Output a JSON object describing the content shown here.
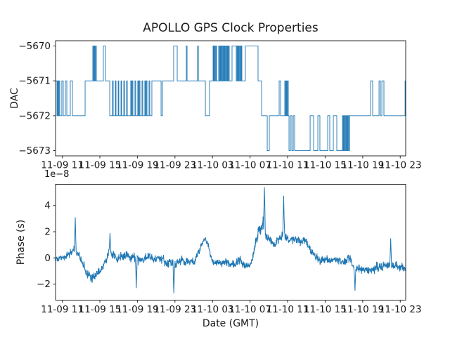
{
  "figure": {
    "title": "APOLLO GPS Clock Properties",
    "background": "#ffffff"
  },
  "colors": {
    "line": "#1f77b4",
    "text": "#1a1a1a",
    "spine": "#2b2b2b"
  },
  "chart_data": [
    {
      "type": "line",
      "subtype": "step",
      "title": "APOLLO GPS Clock Properties",
      "ylabel": "DAC",
      "xlabel": "",
      "grid": false,
      "legend": null,
      "x_axis_note": "hours after 11-09 ~10:20 GMT",
      "xlim_hours": [
        0,
        37.3
      ],
      "ylim": [
        -5673.15,
        -5669.85
      ],
      "yticks": [
        -5673,
        -5672,
        -5671,
        -5670
      ],
      "xtick_hours": [
        0.72,
        4.72,
        8.72,
        12.72,
        16.72,
        20.72,
        24.72,
        28.72,
        32.72,
        36.72
      ],
      "xtick_labels": [
        "11-09 11",
        "11-09 15",
        "11-09 19",
        "11-09 23",
        "11-10 03",
        "11-10 07",
        "11-10 11",
        "11-10 15",
        "11-10 19",
        "11-10 23"
      ],
      "steps": [
        [
          0,
          -5671
        ],
        [
          0.15,
          -5672
        ],
        [
          0.22,
          -5671
        ],
        [
          0.3,
          -5672
        ],
        [
          0.37,
          -5671
        ],
        [
          0.45,
          -5672
        ],
        [
          0.67,
          -5671
        ],
        [
          0.82,
          -5672
        ],
        [
          1.05,
          -5671
        ],
        [
          1.2,
          -5672
        ],
        [
          1.57,
          -5671
        ],
        [
          1.8,
          -5672
        ],
        [
          3.15,
          -5671
        ],
        [
          3.97,
          -5670
        ],
        [
          4.04,
          -5671
        ],
        [
          4.12,
          -5670
        ],
        [
          4.19,
          -5671
        ],
        [
          4.27,
          -5670
        ],
        [
          4.34,
          -5671
        ],
        [
          5.09,
          -5670
        ],
        [
          5.32,
          -5671
        ],
        [
          5.77,
          -5672
        ],
        [
          6.07,
          -5671
        ],
        [
          6.14,
          -5672
        ],
        [
          6.37,
          -5671
        ],
        [
          6.44,
          -5672
        ],
        [
          6.67,
          -5671
        ],
        [
          6.74,
          -5672
        ],
        [
          6.97,
          -5671
        ],
        [
          7.04,
          -5672
        ],
        [
          7.27,
          -5671
        ],
        [
          7.34,
          -5672
        ],
        [
          7.57,
          -5671
        ],
        [
          7.64,
          -5672
        ],
        [
          8.01,
          -5671
        ],
        [
          8.09,
          -5672
        ],
        [
          8.16,
          -5671
        ],
        [
          8.24,
          -5672
        ],
        [
          8.46,
          -5671
        ],
        [
          8.54,
          -5672
        ],
        [
          8.76,
          -5671
        ],
        [
          8.84,
          -5672
        ],
        [
          8.91,
          -5671
        ],
        [
          8.99,
          -5672
        ],
        [
          9.21,
          -5671
        ],
        [
          9.29,
          -5672
        ],
        [
          9.51,
          -5671
        ],
        [
          9.59,
          -5672
        ],
        [
          9.66,
          -5671
        ],
        [
          9.74,
          -5672
        ],
        [
          9.96,
          -5671
        ],
        [
          10.04,
          -5672
        ],
        [
          10.26,
          -5671
        ],
        [
          11.24,
          -5672
        ],
        [
          11.39,
          -5671
        ],
        [
          12.58,
          -5670
        ],
        [
          12.96,
          -5671
        ],
        [
          13.93,
          -5670
        ],
        [
          14.01,
          -5671
        ],
        [
          15.13,
          -5670
        ],
        [
          15.21,
          -5671
        ],
        [
          15.96,
          -5672
        ],
        [
          16.4,
          -5671
        ],
        [
          16.78,
          -5670
        ],
        [
          16.85,
          -5671
        ],
        [
          16.93,
          -5670
        ],
        [
          17,
          -5671
        ],
        [
          17.08,
          -5670
        ],
        [
          17.15,
          -5671
        ],
        [
          17.38,
          -5670
        ],
        [
          17.45,
          -5671
        ],
        [
          17.53,
          -5670
        ],
        [
          17.6,
          -5671
        ],
        [
          17.68,
          -5670
        ],
        [
          17.75,
          -5671
        ],
        [
          17.83,
          -5670
        ],
        [
          17.9,
          -5671
        ],
        [
          17.98,
          -5670
        ],
        [
          18.05,
          -5671
        ],
        [
          18.13,
          -5670
        ],
        [
          18.2,
          -5671
        ],
        [
          18.28,
          -5670
        ],
        [
          18.35,
          -5671
        ],
        [
          18.43,
          -5670
        ],
        [
          18.5,
          -5671
        ],
        [
          18.8,
          -5670
        ],
        [
          19.25,
          -5671
        ],
        [
          19.33,
          -5670
        ],
        [
          19.4,
          -5671
        ],
        [
          19.48,
          -5670
        ],
        [
          19.55,
          -5671
        ],
        [
          19.63,
          -5670
        ],
        [
          19.7,
          -5671
        ],
        [
          19.78,
          -5670
        ],
        [
          19.85,
          -5671
        ],
        [
          20.22,
          -5670
        ],
        [
          21.57,
          -5671
        ],
        [
          21.95,
          -5672
        ],
        [
          22.55,
          -5673
        ],
        [
          22.77,
          -5672
        ],
        [
          23.82,
          -5671
        ],
        [
          23.97,
          -5672
        ],
        [
          24.42,
          -5671
        ],
        [
          24.49,
          -5672
        ],
        [
          24.57,
          -5671
        ],
        [
          24.64,
          -5672
        ],
        [
          24.72,
          -5671
        ],
        [
          24.79,
          -5672
        ],
        [
          24.87,
          -5673
        ],
        [
          25.02,
          -5672
        ],
        [
          25.17,
          -5673
        ],
        [
          25.32,
          -5672
        ],
        [
          25.47,
          -5673
        ],
        [
          27.12,
          -5672
        ],
        [
          27.49,
          -5673
        ],
        [
          27.94,
          -5672
        ],
        [
          28.16,
          -5673
        ],
        [
          28.99,
          -5672
        ],
        [
          29.21,
          -5673
        ],
        [
          29.59,
          -5672
        ],
        [
          29.96,
          -5673
        ],
        [
          30.56,
          -5672
        ],
        [
          30.64,
          -5673
        ],
        [
          30.71,
          -5672
        ],
        [
          30.79,
          -5673
        ],
        [
          30.86,
          -5672
        ],
        [
          30.94,
          -5673
        ],
        [
          31.01,
          -5672
        ],
        [
          31.09,
          -5673
        ],
        [
          31.16,
          -5672
        ],
        [
          31.24,
          -5673
        ],
        [
          31.31,
          -5672
        ],
        [
          33.56,
          -5671
        ],
        [
          33.78,
          -5672
        ],
        [
          34.46,
          -5671
        ],
        [
          34.61,
          -5672
        ],
        [
          34.76,
          -5671
        ],
        [
          34.98,
          -5672
        ],
        [
          37.23,
          -5671
        ]
      ]
    },
    {
      "type": "line",
      "subtype": "noisy-series",
      "title": "",
      "ylabel": "Phase (s)",
      "xlabel": "Date (GMT)",
      "offset_text": "1e−8",
      "units": "1e-8 s",
      "grid": false,
      "legend": null,
      "xlim_hours": [
        0,
        37.3
      ],
      "ylim": [
        -3.22,
        5.62
      ],
      "yticks": [
        -2,
        0,
        2,
        4
      ],
      "xtick_hours": [
        0.72,
        4.72,
        8.72,
        12.72,
        16.72,
        20.72,
        24.72,
        28.72,
        32.72,
        36.72
      ],
      "xtick_labels": [
        "11-09 11",
        "11-09 15",
        "11-09 19",
        "11-09 23",
        "11-10 03",
        "11-10 07",
        "11-10 11",
        "11-10 15",
        "11-10 19",
        "11-10 23"
      ],
      "anchors": [
        [
          0,
          -0.1,
          0.5
        ],
        [
          0.8,
          0.1,
          0.6
        ],
        [
          1.6,
          0.4,
          0.7
        ],
        [
          1.9,
          0.7,
          0.7
        ],
        [
          2.3,
          0.5,
          0.5
        ],
        [
          2.7,
          0,
          0.6
        ],
        [
          3.1,
          -0.9,
          0.7
        ],
        [
          3.4,
          -1.4,
          0.8
        ],
        [
          4,
          -1.6,
          0.7
        ],
        [
          4.6,
          -1.1,
          0.7
        ],
        [
          5.2,
          -0.4,
          0.6
        ],
        [
          5.7,
          0.3,
          0.7
        ],
        [
          6.1,
          0.1,
          0.7
        ],
        [
          6.8,
          0,
          0.7
        ],
        [
          7.6,
          0.1,
          0.7
        ],
        [
          8.3,
          -0.1,
          0.7
        ],
        [
          9.1,
          -0.2,
          0.6
        ],
        [
          9.8,
          0,
          0.7
        ],
        [
          10.6,
          -0.1,
          0.6
        ],
        [
          11.3,
          -0.3,
          0.7
        ],
        [
          12.1,
          -0.4,
          0.7
        ],
        [
          12.6,
          -0.5,
          0.8
        ],
        [
          13.2,
          -0.3,
          0.6
        ],
        [
          13.7,
          -0.2,
          0.6
        ],
        [
          14.3,
          -0.3,
          0.6
        ],
        [
          14.9,
          -0.2,
          0.6
        ],
        [
          15.4,
          0.6,
          0.5
        ],
        [
          15.7,
          1.3,
          0.4
        ],
        [
          16,
          1.4,
          0.4
        ],
        [
          16.4,
          0.8,
          0.5
        ],
        [
          16.7,
          -0.2,
          0.6
        ],
        [
          17.3,
          -0.4,
          0.6
        ],
        [
          18.1,
          -0.3,
          0.6
        ],
        [
          18.8,
          -0.4,
          0.6
        ],
        [
          19.6,
          -0.2,
          0.7
        ],
        [
          20.1,
          -0.4,
          0.6
        ],
        [
          20.7,
          -0.7,
          0.5
        ],
        [
          20.9,
          -0.3,
          0.6
        ],
        [
          21.2,
          0.8,
          0.8
        ],
        [
          21.5,
          1.8,
          0.9
        ],
        [
          21.8,
          2.4,
          0.9
        ],
        [
          22.1,
          2.8,
          1.1
        ],
        [
          22.4,
          1.7,
          0.8
        ],
        [
          22.9,
          1.3,
          0.7
        ],
        [
          23.4,
          1,
          0.7
        ],
        [
          23.9,
          1.4,
          0.8
        ],
        [
          24.2,
          2,
          1
        ],
        [
          24.5,
          1.6,
          0.6
        ],
        [
          24.9,
          1.5,
          0.6
        ],
        [
          25.5,
          1.4,
          0.6
        ],
        [
          26.1,
          1.3,
          0.6
        ],
        [
          26.7,
          1.2,
          0.6
        ],
        [
          27.2,
          0.6,
          0.6
        ],
        [
          27.6,
          0.1,
          0.6
        ],
        [
          28.2,
          -0.3,
          0.7
        ],
        [
          28.7,
          0,
          0.6
        ],
        [
          29.3,
          -0.2,
          0.6
        ],
        [
          29.9,
          -0.1,
          0.6
        ],
        [
          30.5,
          -0.3,
          0.6
        ],
        [
          31.1,
          -0.2,
          0.7
        ],
        [
          31.5,
          -0.4,
          0.7
        ],
        [
          31.9,
          -0.8,
          0.8
        ],
        [
          32.4,
          -0.9,
          0.6
        ],
        [
          33,
          -0.8,
          0.6
        ],
        [
          33.6,
          -1,
          0.6
        ],
        [
          34.2,
          -0.8,
          0.7
        ],
        [
          34.8,
          -0.7,
          0.7
        ],
        [
          35.4,
          -0.5,
          0.7
        ],
        [
          36,
          -0.6,
          0.6
        ],
        [
          36.6,
          -0.7,
          0.7
        ],
        [
          37.3,
          -0.9,
          0.6
        ]
      ],
      "spikes": [
        [
          2.1,
          3.1
        ],
        [
          5.8,
          1.9
        ],
        [
          8.6,
          -2.3
        ],
        [
          12.6,
          -2.7
        ],
        [
          22.25,
          5.4
        ],
        [
          24.3,
          4.75
        ],
        [
          31.9,
          -2.5
        ],
        [
          35.7,
          1.5
        ]
      ],
      "points_per_hour": 40,
      "noise_seed": 20231109
    }
  ]
}
